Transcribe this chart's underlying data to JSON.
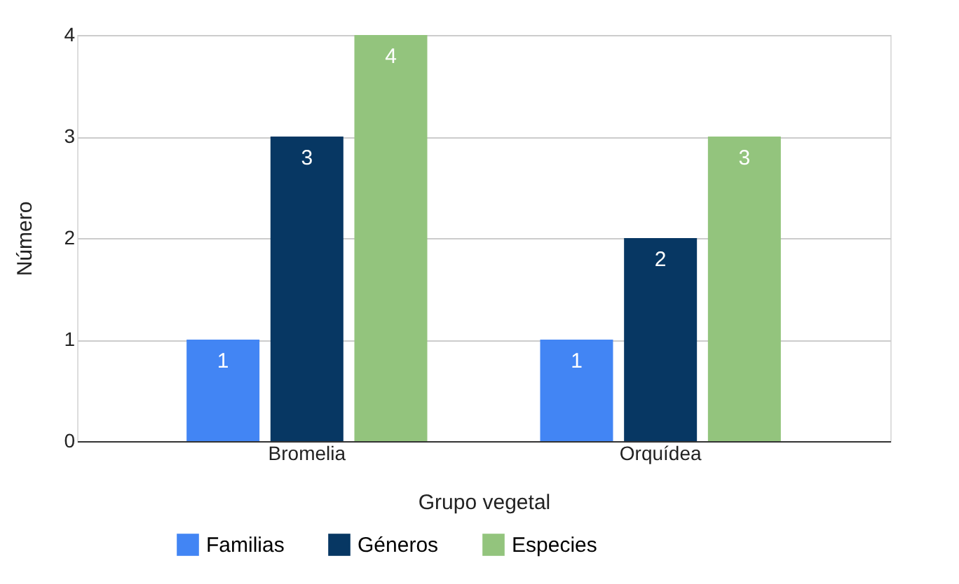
{
  "chart_data": {
    "type": "bar",
    "xlabel": "Grupo vegetal",
    "ylabel": "Número",
    "categories": [
      "Bromelia",
      "Orquídea"
    ],
    "series": [
      {
        "name": "Familias",
        "color": "#4285f4",
        "values": [
          1,
          1
        ]
      },
      {
        "name": "Géneros",
        "color": "#073763",
        "values": [
          3,
          2
        ]
      },
      {
        "name": "Especies",
        "color": "#93c47d",
        "values": [
          4,
          3
        ]
      }
    ],
    "ylim": [
      0,
      4
    ],
    "yticks": [
      {
        "value": 0,
        "label": "0"
      },
      {
        "value": 1,
        "label": "1"
      },
      {
        "value": 2,
        "label": "2"
      },
      {
        "value": 3,
        "label": "3"
      },
      {
        "value": 4,
        "label": "4"
      }
    ],
    "grid": "y",
    "legend": "bottom",
    "data_labels": true
  }
}
